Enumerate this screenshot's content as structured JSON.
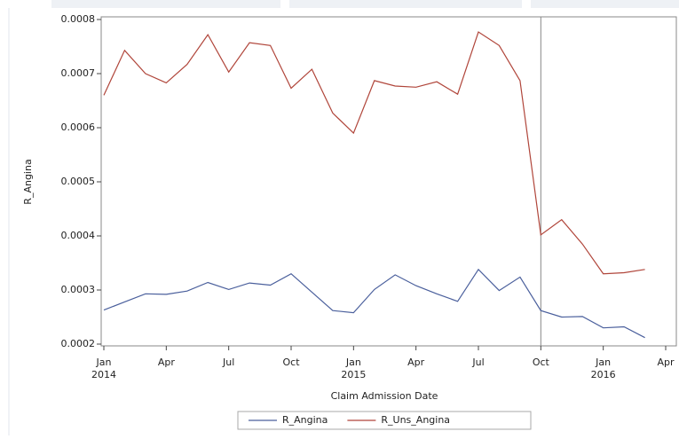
{
  "chart_data": {
    "type": "line",
    "x_label": "Claim Admission Date",
    "y_label": "R_Angina",
    "x": [
      "2014-01",
      "2014-02",
      "2014-03",
      "2014-04",
      "2014-05",
      "2014-06",
      "2014-07",
      "2014-08",
      "2014-09",
      "2014-10",
      "2014-11",
      "2014-12",
      "2015-01",
      "2015-02",
      "2015-03",
      "2015-04",
      "2015-05",
      "2015-06",
      "2015-07",
      "2015-08",
      "2015-09",
      "2015-10",
      "2015-11",
      "2015-12",
      "2016-01",
      "2016-02",
      "2016-03"
    ],
    "series": [
      {
        "name": "R_Angina",
        "color": "#4a5f9c",
        "values": [
          0.000263,
          0.000278,
          0.000293,
          0.000292,
          0.000298,
          0.000314,
          0.000301,
          0.000313,
          0.000309,
          0.00033,
          0.000296,
          0.000262,
          0.000258,
          0.000301,
          0.000328,
          0.000308,
          0.000293,
          0.000279,
          0.000338,
          0.000299,
          0.000324,
          0.000262,
          0.00025,
          0.000251,
          0.00023,
          0.000232,
          0.000212
        ]
      },
      {
        "name": "R_Uns_Angina",
        "color": "#b0453a",
        "values": [
          0.00066,
          0.000743,
          0.0007,
          0.000683,
          0.000717,
          0.000772,
          0.000703,
          0.000757,
          0.000752,
          0.000673,
          0.000708,
          0.000627,
          0.00059,
          0.000687,
          0.000677,
          0.000675,
          0.000685,
          0.000662,
          0.000777,
          0.000752,
          0.000687,
          0.000402,
          0.00043,
          0.000385,
          0.00033,
          0.000332,
          0.000338
        ]
      }
    ],
    "xlim": [
      "2014-01",
      "2016-04"
    ],
    "xticks": [
      {
        "value": "2014-01",
        "label": "Jan",
        "sublabel": "2014"
      },
      {
        "value": "2014-04",
        "label": "Apr"
      },
      {
        "value": "2014-07",
        "label": "Jul"
      },
      {
        "value": "2014-10",
        "label": "Oct"
      },
      {
        "value": "2015-01",
        "label": "Jan",
        "sublabel": "2015"
      },
      {
        "value": "2015-04",
        "label": "Apr"
      },
      {
        "value": "2015-07",
        "label": "Jul"
      },
      {
        "value": "2015-10",
        "label": "Oct"
      },
      {
        "value": "2016-01",
        "label": "Jan",
        "sublabel": "2016"
      },
      {
        "value": "2016-04",
        "label": "Apr"
      }
    ],
    "ylim": [
      0.0002,
      0.0008
    ],
    "yticks": [
      0.0002,
      0.0003,
      0.0004,
      0.0005,
      0.0006,
      0.0007,
      0.0008
    ],
    "reference_line": "2015-10",
    "legend": "bottom"
  }
}
